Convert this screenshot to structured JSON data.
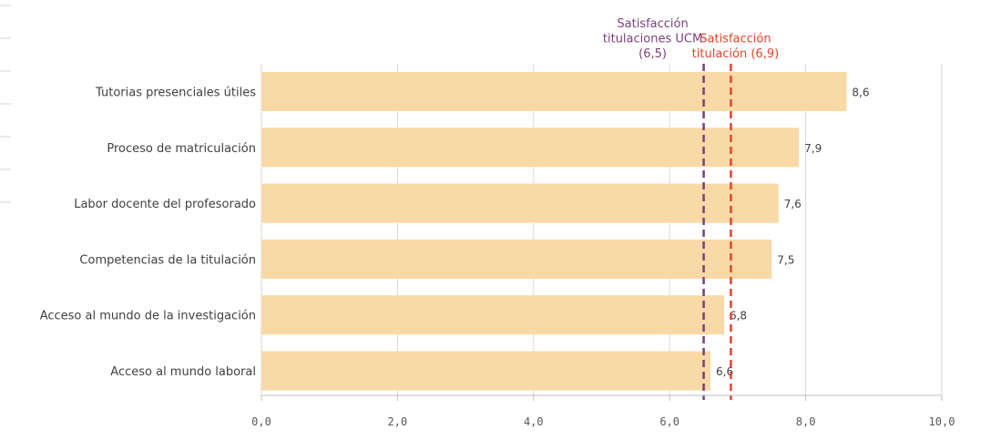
{
  "chart_data": {
    "type": "bar",
    "orientation": "horizontal",
    "categories": [
      "Tutorias presenciales útiles",
      "Proceso de matriculación",
      "Labor docente del profesorado",
      "Competencias de la titulación",
      "Acceso al mundo de la investigación",
      "Acceso al mundo laboral"
    ],
    "values": [
      8.6,
      7.9,
      7.6,
      7.5,
      6.8,
      6.6
    ],
    "value_labels": [
      "8,6",
      "7,9",
      "7,6",
      "7,5",
      "6,8",
      "6,6"
    ],
    "xlim": [
      0,
      10
    ],
    "x_ticks": [
      0,
      2,
      4,
      6,
      8,
      10
    ],
    "x_tick_labels": [
      "0,0",
      "2,0",
      "4,0",
      "6,0",
      "8,0",
      "10,0"
    ],
    "grid": true,
    "bar_color": "#f9d9a6",
    "reference_lines": [
      {
        "value": 6.5,
        "label_lines": [
          "Satisfacción",
          "titulaciones UCM",
          "(6,5)"
        ],
        "color": "#7b3f7a",
        "style": "dashed"
      },
      {
        "value": 6.9,
        "label_lines": [
          "Satisfacción",
          "titulación (6,9)"
        ],
        "color": "#e8412c",
        "style": "dashed"
      }
    ]
  }
}
